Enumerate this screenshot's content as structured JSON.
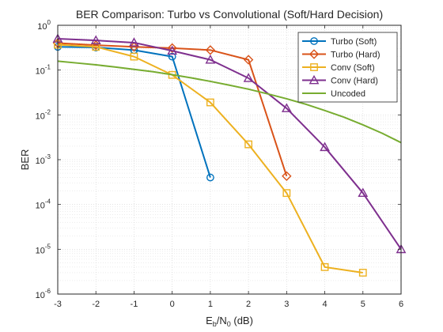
{
  "chart_data": {
    "type": "line",
    "title": "BER Comparison: Turbo vs Convolutional (Soft/Hard Decision)",
    "xlabel": {
      "base": "E",
      "sub1": "b",
      "mid": "/N",
      "sub2": "0",
      "tail": " (dB)"
    },
    "ylabel": "BER",
    "xlim": [
      -3,
      6
    ],
    "ylim": [
      1e-06,
      1
    ],
    "yscale": "log",
    "grid": true,
    "minor_grid": true,
    "legend_position": "top-right",
    "x_ticks": [
      "-3",
      "-2",
      "-1",
      "0",
      "1",
      "2",
      "3",
      "4",
      "5",
      "6"
    ],
    "y_ticks": [
      {
        "base": "10",
        "exp": "0",
        "value": 1
      },
      {
        "base": "10",
        "exp": "-1",
        "value": 0.1
      },
      {
        "base": "10",
        "exp": "-2",
        "value": 0.01
      },
      {
        "base": "10",
        "exp": "-3",
        "value": 0.001
      },
      {
        "base": "10",
        "exp": "-4",
        "value": 0.0001
      },
      {
        "base": "10",
        "exp": "-5",
        "value": 1e-05
      },
      {
        "base": "10",
        "exp": "-6",
        "value": 1e-06
      }
    ],
    "series": [
      {
        "name": "Turbo (Soft)",
        "color": "#0072BD",
        "marker": "circle",
        "x": [
          -3,
          -2,
          -1,
          0,
          1
        ],
        "y": [
          0.33,
          0.32,
          0.28,
          0.2,
          0.0004
        ]
      },
      {
        "name": "Turbo (Hard)",
        "color": "#D95319",
        "marker": "diamond",
        "x": [
          -3,
          -2,
          -1,
          0,
          1,
          2,
          3
        ],
        "y": [
          0.4,
          0.36,
          0.33,
          0.31,
          0.28,
          0.17,
          0.00043
        ]
      },
      {
        "name": "Conv (Soft)",
        "color": "#EDB120",
        "marker": "square",
        "x": [
          -3,
          -2,
          -1,
          0,
          1,
          2,
          3,
          4,
          5
        ],
        "y": [
          0.37,
          0.33,
          0.2,
          0.078,
          0.019,
          0.0022,
          0.00018,
          4e-06,
          3e-06
        ]
      },
      {
        "name": "Conv (Hard)",
        "color": "#7E2F8E",
        "marker": "triangle",
        "x": [
          -3,
          -2,
          -1,
          0,
          1,
          2,
          3,
          4,
          5,
          6
        ],
        "y": [
          0.5,
          0.46,
          0.41,
          0.27,
          0.17,
          0.066,
          0.014,
          0.0019,
          0.00018,
          1e-05
        ]
      },
      {
        "name": "Uncoded",
        "color": "#77AC30",
        "marker": "none",
        "x": [
          -3,
          -2.5,
          -2,
          -1.5,
          -1,
          -0.5,
          0,
          0.5,
          1,
          1.5,
          2,
          2.5,
          3,
          3.5,
          4,
          4.5,
          5,
          5.5,
          6
        ],
        "y": [
          0.158,
          0.144,
          0.131,
          0.117,
          0.104,
          0.092,
          0.079,
          0.067,
          0.056,
          0.046,
          0.0375,
          0.0295,
          0.0229,
          0.0173,
          0.0125,
          0.0089,
          0.006,
          0.0039,
          0.0024
        ]
      }
    ]
  }
}
